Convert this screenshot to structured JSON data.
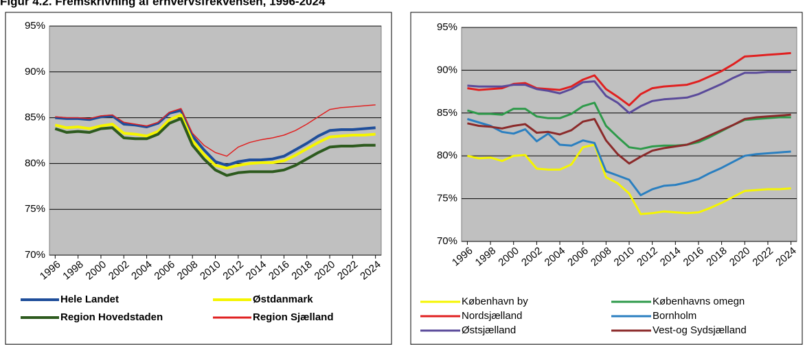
{
  "title": "Figur 4.2. Fremskrivning af erhvervsfrekvensen, 1996-2024",
  "chart_data": [
    {
      "type": "line",
      "x": [
        1996,
        1997,
        1998,
        1999,
        2000,
        2001,
        2002,
        2003,
        2004,
        2005,
        2006,
        2007,
        2008,
        2009,
        2010,
        2011,
        2012,
        2013,
        2014,
        2015,
        2016,
        2017,
        2018,
        2019,
        2020,
        2021,
        2022,
        2023,
        2024
      ],
      "xlim": [
        1995.5,
        2024.5
      ],
      "xticks": [
        1996,
        1998,
        2000,
        2002,
        2004,
        2006,
        2008,
        2010,
        2012,
        2014,
        2016,
        2018,
        2020,
        2022,
        2024
      ],
      "ylim": [
        70,
        95
      ],
      "yticks": [
        {
          "value": 70,
          "label": "70%"
        },
        {
          "value": 75,
          "label": "75%"
        },
        {
          "value": 80,
          "label": "80%"
        },
        {
          "value": 85,
          "label": "85%"
        },
        {
          "value": 90,
          "label": "90%"
        },
        {
          "value": 95,
          "label": "95%"
        }
      ],
      "grid": true,
      "series": [
        {
          "name": "Hele Landet",
          "color": "#1f4e9a",
          "line_width": 4,
          "values": [
            85,
            84.9,
            84.9,
            84.8,
            85.1,
            85.2,
            84.3,
            84.2,
            84,
            84.4,
            85.5,
            85.8,
            83,
            81.5,
            80.2,
            79.8,
            80.2,
            80.4,
            80.4,
            80.5,
            80.8,
            81.5,
            82.2,
            83,
            83.6,
            83.7,
            83.7,
            83.8,
            83.9
          ]
        },
        {
          "name": "Østdanmark",
          "color": "#f5f500",
          "line_width": 4,
          "values": [
            84.2,
            83.9,
            84,
            83.8,
            84.1,
            84.3,
            83.3,
            83.2,
            83,
            83.5,
            84.8,
            85.3,
            82.5,
            81,
            79.8,
            79.5,
            79.8,
            80,
            80.1,
            80.1,
            80.3,
            80.9,
            81.6,
            82.3,
            82.9,
            83,
            83.1,
            83.1,
            83.2
          ]
        },
        {
          "name": "Region Hovedstaden",
          "color": "#2d5a1e",
          "line_width": 4,
          "values": [
            83.8,
            83.4,
            83.5,
            83.4,
            83.8,
            83.9,
            82.8,
            82.7,
            82.7,
            83.2,
            84.4,
            84.9,
            82,
            80.5,
            79.3,
            78.7,
            79,
            79.1,
            79.1,
            79.1,
            79.3,
            79.8,
            80.5,
            81.2,
            81.8,
            81.9,
            81.9,
            82,
            82
          ]
        },
        {
          "name": "Region Sjælland",
          "color": "#e02020",
          "line_width": 1.5,
          "values": [
            85.1,
            85,
            85,
            84.9,
            85.2,
            85.3,
            84.5,
            84.3,
            84.1,
            84.5,
            85.6,
            86,
            83.3,
            82,
            81.2,
            80.8,
            81.8,
            82.3,
            82.6,
            82.8,
            83.1,
            83.6,
            84.3,
            85.1,
            85.9,
            86.1,
            86.2,
            86.3,
            86.4
          ]
        }
      ]
    },
    {
      "type": "line",
      "x": [
        1996,
        1997,
        1998,
        1999,
        2000,
        2001,
        2002,
        2003,
        2004,
        2005,
        2006,
        2007,
        2008,
        2009,
        2010,
        2011,
        2012,
        2013,
        2014,
        2015,
        2016,
        2017,
        2018,
        2019,
        2020,
        2021,
        2022,
        2023,
        2024
      ],
      "xlim": [
        1995.5,
        2024.5
      ],
      "xticks": [
        1996,
        1998,
        2000,
        2002,
        2004,
        2006,
        2008,
        2010,
        2012,
        2014,
        2016,
        2018,
        2020,
        2022,
        2024
      ],
      "ylim": [
        70,
        95
      ],
      "yticks": [
        {
          "value": 70,
          "label": "70%"
        },
        {
          "value": 75,
          "label": "75%"
        },
        {
          "value": 80,
          "label": "80%"
        },
        {
          "value": 85,
          "label": "85%"
        },
        {
          "value": 90,
          "label": "90%"
        },
        {
          "value": 95,
          "label": "95%"
        }
      ],
      "grid": true,
      "series": [
        {
          "name": "København by",
          "color": "#f5f500",
          "line_width": 3,
          "values": [
            80,
            79.7,
            79.8,
            79.4,
            80,
            80.1,
            78.5,
            78.4,
            78.4,
            79,
            81,
            81.3,
            77.5,
            76.8,
            75.6,
            73.2,
            73.3,
            73.5,
            73.4,
            73.3,
            73.4,
            73.9,
            74.5,
            75.2,
            75.9,
            76,
            76.1,
            76.1,
            76.2
          ]
        },
        {
          "name": "Københavns omegn",
          "color": "#2e9a4a",
          "line_width": 3,
          "values": [
            85.3,
            84.9,
            84.9,
            84.8,
            85.5,
            85.5,
            84.6,
            84.4,
            84.4,
            84.9,
            85.8,
            86.2,
            83.5,
            82.2,
            81,
            80.8,
            81.1,
            81.2,
            81.2,
            81.3,
            81.6,
            82.2,
            82.9,
            83.6,
            84.2,
            84.3,
            84.4,
            84.5,
            84.5
          ]
        },
        {
          "name": "Nordsjælland",
          "color": "#e02020",
          "line_width": 3,
          "values": [
            87.9,
            87.7,
            87.8,
            87.9,
            88.4,
            88.5,
            87.9,
            87.8,
            87.7,
            88.1,
            88.9,
            89.4,
            87.8,
            86.9,
            85.9,
            87.2,
            87.9,
            88.1,
            88.2,
            88.3,
            88.7,
            89.3,
            89.9,
            90.7,
            91.6,
            91.7,
            91.8,
            91.9,
            92
          ]
        },
        {
          "name": "Bornholm",
          "color": "#2a7fc0",
          "line_width": 3,
          "values": [
            84.3,
            83.9,
            83.5,
            82.8,
            82.6,
            83.1,
            81.7,
            82.6,
            81.3,
            81.2,
            81.8,
            81.5,
            78.2,
            77.7,
            77.2,
            75.4,
            76.1,
            76.5,
            76.6,
            76.9,
            77.3,
            78,
            78.6,
            79.3,
            80,
            80.2,
            80.3,
            80.4,
            80.5
          ]
        },
        {
          "name": "Østsjælland",
          "color": "#5a4a9a",
          "line_width": 3,
          "values": [
            88.2,
            88.1,
            88.1,
            88.1,
            88.3,
            88.3,
            87.8,
            87.6,
            87.3,
            87.8,
            88.6,
            88.7,
            87,
            86.2,
            85,
            85.8,
            86.4,
            86.6,
            86.7,
            86.8,
            87.2,
            87.8,
            88.4,
            89.1,
            89.7,
            89.7,
            89.8,
            89.8,
            89.8
          ]
        },
        {
          "name": "Vest-og Sydsjælland",
          "color": "#8b2a2a",
          "line_width": 3,
          "values": [
            83.8,
            83.5,
            83.4,
            83.2,
            83.5,
            83.7,
            82.7,
            82.8,
            82.5,
            83,
            84,
            84.3,
            81.8,
            80.2,
            79.1,
            79.9,
            80.6,
            80.9,
            81.1,
            81.3,
            81.8,
            82.4,
            83,
            83.6,
            84.3,
            84.5,
            84.6,
            84.7,
            84.8
          ]
        }
      ]
    }
  ]
}
